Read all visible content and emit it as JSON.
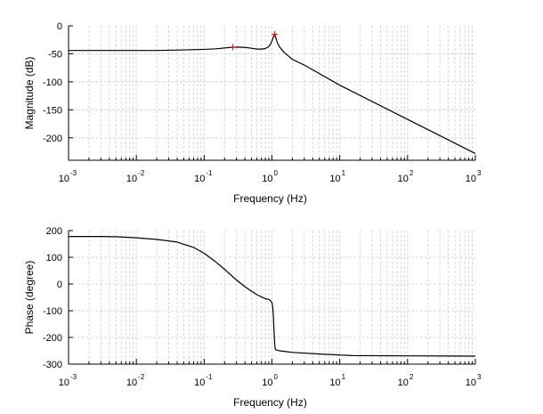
{
  "chart_data": [
    {
      "type": "line",
      "xlabel": "Frequency (Hz)",
      "ylabel": "Magnitude (dB)",
      "xscale": "log",
      "xlim": [
        0.001,
        1000
      ],
      "ylim": [
        -240,
        0
      ],
      "grid": true,
      "x_ticks": [
        "-3",
        "-2",
        "-1",
        "0",
        "1",
        "2",
        "3"
      ],
      "y_ticks": [
        "0",
        "-50",
        "-100",
        "-150",
        "-200"
      ],
      "y_tick_values": [
        0,
        -50,
        -100,
        -150,
        -200
      ],
      "series": [
        {
          "color": "#000000",
          "x": [
            0.001,
            0.003,
            0.01,
            0.02,
            0.05,
            0.1,
            0.15,
            0.2,
            0.25,
            0.3,
            0.4,
            0.5,
            0.6,
            0.7,
            0.8,
            0.9,
            0.95,
            1.0,
            1.05,
            1.08,
            1.1,
            1.13,
            1.2,
            1.3,
            1.5,
            2,
            3,
            10,
            100,
            1000
          ],
          "y": [
            -44,
            -44,
            -44,
            -44,
            -43,
            -42,
            -41,
            -39.5,
            -38.5,
            -38,
            -38.5,
            -40,
            -41.5,
            -41.5,
            -40.5,
            -37,
            -33,
            -27,
            -20,
            -16,
            -15,
            -20,
            -30,
            -38,
            -47,
            -60,
            -70,
            -106,
            -167,
            -228
          ]
        }
      ],
      "markers": [
        {
          "color": "#ff0000",
          "symbol": "+",
          "x": 0.265,
          "y": -38
        },
        {
          "color": "#ff0000",
          "symbol": "+",
          "x": 1.1,
          "y": -15
        }
      ]
    },
    {
      "type": "line",
      "xlabel": "Frequency (Hz)",
      "ylabel": "Phase (degree)",
      "xscale": "log",
      "xlim": [
        0.001,
        1000
      ],
      "ylim": [
        -300,
        200
      ],
      "grid": true,
      "x_ticks": [
        "-3",
        "-2",
        "-1",
        "0",
        "1",
        "2",
        "3"
      ],
      "y_ticks": [
        "200",
        "100",
        "0",
        "-100",
        "-200",
        "-300"
      ],
      "y_tick_values": [
        200,
        100,
        0,
        -100,
        -200,
        -300
      ],
      "series": [
        {
          "color": "#000000",
          "x": [
            0.001,
            0.003,
            0.005,
            0.01,
            0.02,
            0.04,
            0.07,
            0.1,
            0.15,
            0.2,
            0.3,
            0.4,
            0.5,
            0.6,
            0.7,
            0.8,
            0.9,
            0.95,
            1.0,
            1.02,
            1.05,
            1.08,
            1.1,
            1.12,
            1.15,
            1.3,
            1.5,
            2,
            5,
            15,
            100,
            1000
          ],
          "y": [
            178,
            178,
            177,
            173,
            167,
            157,
            137,
            115,
            82,
            55,
            15,
            -10,
            -27,
            -40,
            -48,
            -55,
            -58,
            -62,
            -70,
            -80,
            -120,
            -190,
            -230,
            -243,
            -247,
            -250,
            -252,
            -256,
            -262,
            -268,
            -269,
            -270
          ]
        }
      ]
    }
  ]
}
